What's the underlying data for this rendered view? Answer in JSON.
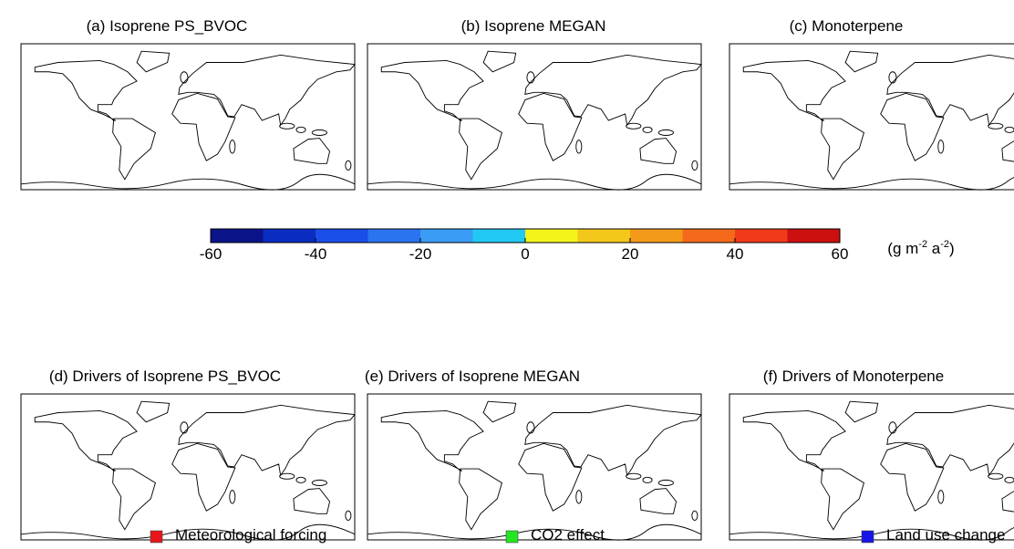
{
  "panels": [
    {
      "title": "(a) Isoprene PS_BVOC"
    },
    {
      "title": "(b) Isoprene MEGAN"
    },
    {
      "title": "(c) Monoterpene"
    },
    {
      "title": "(d) Drivers of Isoprene PS_BVOC"
    },
    {
      "title": "(e) Drivers of Isoprene MEGAN"
    },
    {
      "title": "(f) Drivers of Monoterpene"
    }
  ],
  "colorbar": {
    "clim": [
      -60,
      60
    ],
    "ticks": [
      -60,
      -40,
      -20,
      0,
      20,
      40,
      60
    ],
    "colors": [
      "#0a1488",
      "#0a2cc0",
      "#1a4ee8",
      "#2a74f0",
      "#3a9cf4",
      "#22c8f4",
      "#f4f41a",
      "#f4c81a",
      "#f49a1a",
      "#f46a1a",
      "#f03a1a",
      "#cc1010"
    ],
    "unit": [
      "(g m",
      "-2",
      " a",
      "-2",
      ")"
    ]
  },
  "legend": [
    {
      "name": "Meteorological forcing",
      "color": "#e8161a"
    },
    {
      "name": "CO2 effect",
      "color": "#22e622"
    },
    {
      "name": "Land use change",
      "color": "#1616e8"
    }
  ]
}
